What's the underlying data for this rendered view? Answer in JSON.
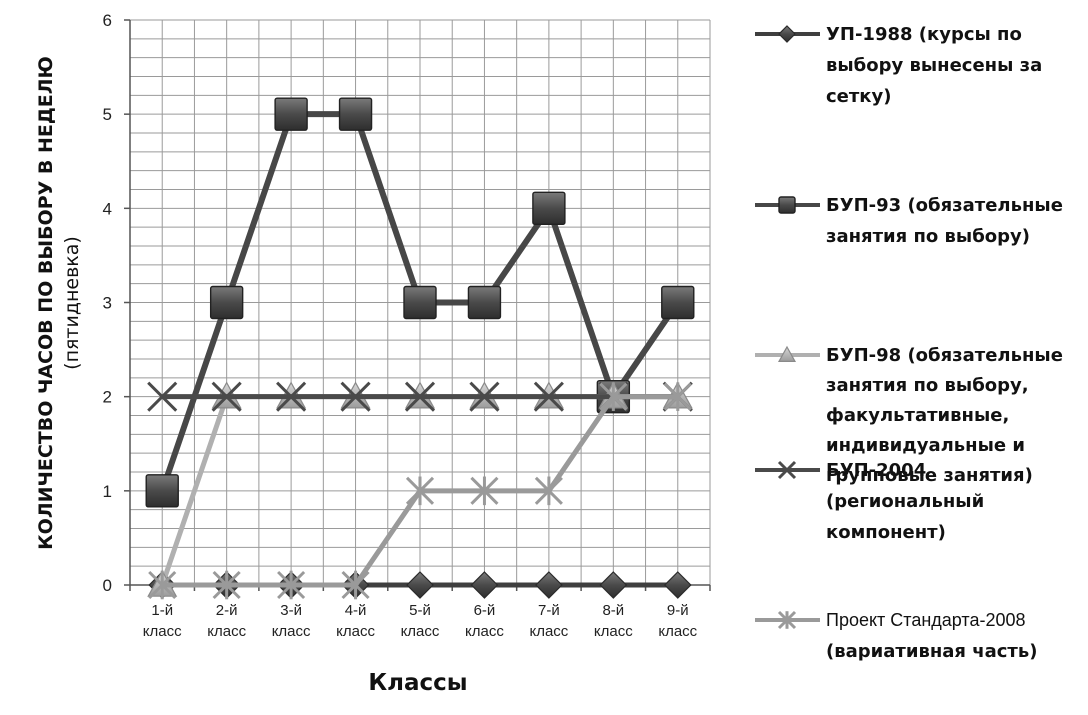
{
  "chart_data": {
    "type": "line",
    "categories": [
      [
        "1-й",
        "класс"
      ],
      [
        "2-й",
        "класс"
      ],
      [
        "3-й",
        "класс"
      ],
      [
        "4-й",
        "класс"
      ],
      [
        "5-й",
        "класс"
      ],
      [
        "6-й",
        "класс"
      ],
      [
        "7-й",
        "класс"
      ],
      [
        "8-й",
        "класс"
      ],
      [
        "9-й",
        "класс"
      ]
    ],
    "ylim": [
      0,
      6
    ],
    "yticks": [
      "0",
      "1",
      "2",
      "3",
      "4",
      "5",
      "6"
    ],
    "ylabel": [
      "КОЛИЧЕСТВО ЧАСОВ ПО ВЫБОРУ В НЕДЕЛЮ",
      "(пятидневка)"
    ],
    "xlabel": "Классы",
    "grid": true,
    "legend_position": "right",
    "series": [
      {
        "key": "s1",
        "name": [
          "УП-1988 (курсы по",
          "выбору вынесены за",
          "сетку)"
        ],
        "marker": "diamond",
        "color": "#3f3f3f",
        "values": [
          0,
          0,
          0,
          0,
          0,
          0,
          0,
          0,
          0
        ]
      },
      {
        "key": "s2",
        "name": [
          "БУП-93  (обязательные",
          "занятия по выбору)"
        ],
        "marker": "square",
        "color": "#474747",
        "values": [
          1,
          3,
          5,
          5,
          3,
          3,
          4,
          2,
          3
        ]
      },
      {
        "key": "s3",
        "name": [
          "БУП-98 (обязательные",
          "занятия по выбору,",
          "факультативные,",
          "индивидуальные и",
          "групповые занятия)"
        ],
        "marker": "triangle",
        "color": "#b0b0b0",
        "values": [
          0,
          2,
          2,
          2,
          2,
          2,
          2,
          2,
          2
        ]
      },
      {
        "key": "s4",
        "name": [
          "БУП-2004",
          "(региональный",
          "компонент)"
        ],
        "marker": "x",
        "color": "#4a4a4a",
        "values": [
          2,
          2,
          2,
          2,
          2,
          2,
          2,
          2,
          2
        ]
      },
      {
        "key": "s5",
        "name": [
          "Проект Стандарта-2008",
          "(вариативная часть)"
        ],
        "marker": "star",
        "color": "#9a9a9a",
        "values": [
          0,
          0,
          0,
          0,
          1,
          1,
          1,
          2,
          2
        ]
      }
    ]
  }
}
